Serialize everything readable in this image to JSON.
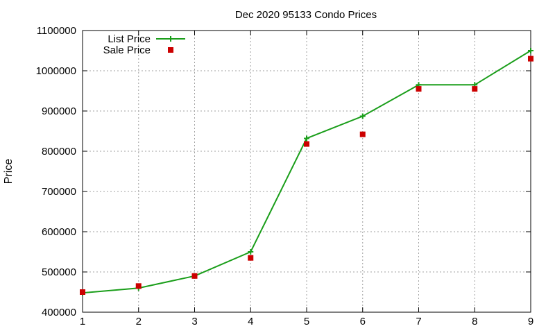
{
  "chart_data": {
    "type": "line",
    "title": "Dec 2020 95133 Condo Prices",
    "xlabel": "",
    "ylabel": "Price",
    "xlim": [
      1,
      9
    ],
    "ylim": [
      400000,
      1100000
    ],
    "x_ticks": [
      1,
      2,
      3,
      4,
      5,
      6,
      7,
      8,
      9
    ],
    "y_ticks": [
      400000,
      500000,
      600000,
      700000,
      800000,
      900000,
      1000000,
      1100000
    ],
    "grid": true,
    "legend_position": "top-left",
    "x": [
      1,
      2,
      3,
      4,
      5,
      6,
      7,
      8,
      9
    ],
    "series": [
      {
        "name": "List Price",
        "style": "line+cross",
        "color": "#1a9e1a",
        "values": [
          448000,
          460000,
          490000,
          550000,
          832000,
          887000,
          965000,
          965000,
          1050000
        ]
      },
      {
        "name": "Sale Price",
        "style": "square-points",
        "color": "#cc0000",
        "values": [
          450000,
          465000,
          490000,
          535000,
          818000,
          842000,
          955000,
          955000,
          1030000
        ]
      }
    ]
  }
}
